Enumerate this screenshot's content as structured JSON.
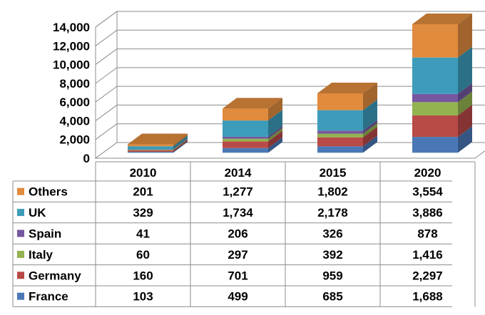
{
  "chart_data": {
    "type": "bar",
    "stacked": true,
    "three_d": true,
    "categories": [
      "2010",
      "2014",
      "2015",
      "2020"
    ],
    "y_ticks": [
      "0",
      "2,000",
      "4,000",
      "6,000",
      "8,000",
      "10,000",
      "12,000",
      "14,000"
    ],
    "ylim": [
      0,
      14000
    ],
    "grid": false,
    "legend": "data-table-left",
    "series": [
      {
        "name": "France",
        "color": "#4a78b6",
        "values": [
          103,
          499,
          685,
          1688
        ],
        "labels": [
          "103",
          "499",
          "685",
          "1,688"
        ]
      },
      {
        "name": "Germany",
        "color": "#b84a47",
        "values": [
          160,
          701,
          959,
          2297
        ],
        "labels": [
          "160",
          "701",
          "959",
          "2,297"
        ]
      },
      {
        "name": "Italy",
        "color": "#93b350",
        "values": [
          60,
          297,
          392,
          1416
        ],
        "labels": [
          "60",
          "297",
          "392",
          "1,416"
        ]
      },
      {
        "name": "Spain",
        "color": "#7557a0",
        "values": [
          41,
          206,
          326,
          878
        ],
        "labels": [
          "41",
          "206",
          "326",
          "878"
        ]
      },
      {
        "name": "UK",
        "color": "#3c9cba",
        "values": [
          329,
          1734,
          2178,
          3886
        ],
        "labels": [
          "329",
          "1,734",
          "2,178",
          "3,886"
        ]
      },
      {
        "name": "Others",
        "color": "#e08b3d",
        "values": [
          201,
          1277,
          1802,
          3554
        ],
        "labels": [
          "201",
          "1,277",
          "1,802",
          "3,554"
        ]
      }
    ]
  }
}
